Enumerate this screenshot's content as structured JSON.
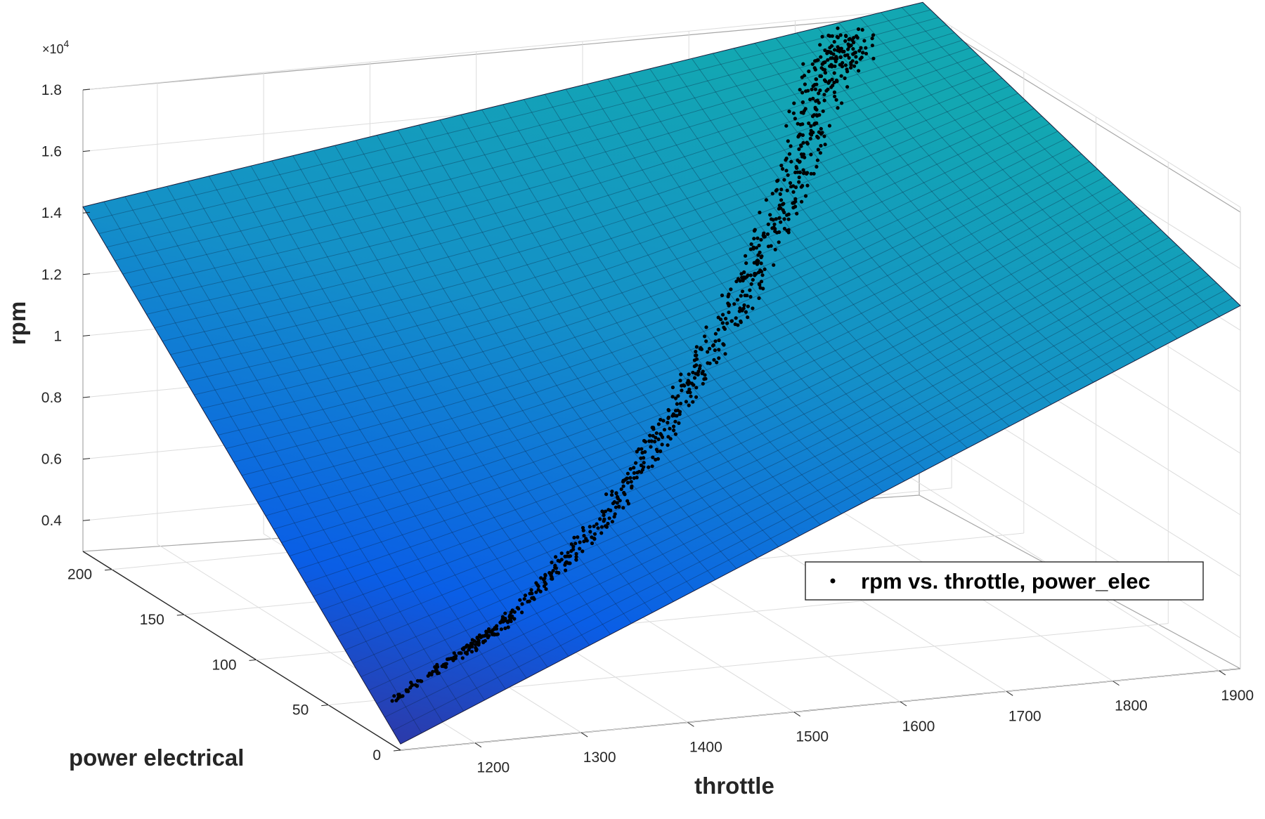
{
  "chart_data": {
    "type": "scatter",
    "view": "3d surface fit with scatter points",
    "x": {
      "label": "throttle",
      "ticks": [
        1200,
        1300,
        1400,
        1500,
        1600,
        1700,
        1800,
        1900
      ],
      "tick_labels": [
        "1200",
        "1300",
        "1400",
        "1500",
        "1600",
        "1700",
        "1800",
        "1900"
      ],
      "range": [
        1130,
        1920
      ]
    },
    "y": {
      "label": "power electrical",
      "ticks": [
        0,
        50,
        100,
        150,
        200
      ],
      "tick_labels": [
        "0",
        "50",
        "100",
        "150",
        "200"
      ],
      "range": [
        0,
        220
      ]
    },
    "z": {
      "label": "rpm",
      "ticks": [
        0.4,
        0.6,
        0.8,
        1.0,
        1.2,
        1.4,
        1.6,
        1.8
      ],
      "tick_labels": [
        "0.4",
        "0.6",
        "0.8",
        "1",
        "1.2",
        "1.4",
        "1.6",
        "1.8"
      ],
      "multiplier_base": "×10",
      "multiplier_exp": "4",
      "range": [
        0.3,
        1.8
      ]
    },
    "grid": true,
    "legend": {
      "position": "inside-right",
      "entries": [
        "rpm vs. throttle, power_elec"
      ]
    },
    "surface": {
      "corners": [
        {
          "throttle": 1130,
          "power": 0,
          "rpm": 0.32
        },
        {
          "throttle": 1130,
          "power": 220,
          "rpm": 1.42
        },
        {
          "throttle": 1920,
          "power": 0,
          "rpm": 1.48
        },
        {
          "throttle": 1920,
          "power": 220,
          "rpm": 1.82
        }
      ],
      "colormap": [
        "#3b2a8f",
        "#0a5ee6",
        "#1490c8",
        "#13a7b2"
      ]
    },
    "series": [
      {
        "name": "rpm vs. throttle, power_elec",
        "color": "#000000",
        "path": [
          {
            "throttle": 1130,
            "power": 5,
            "rpm": 0.45
          },
          {
            "throttle": 1250,
            "power": 20,
            "rpm": 0.6
          },
          {
            "throttle": 1380,
            "power": 45,
            "rpm": 0.82
          },
          {
            "throttle": 1500,
            "power": 80,
            "rpm": 1.05
          },
          {
            "throttle": 1620,
            "power": 120,
            "rpm": 1.3
          },
          {
            "throttle": 1720,
            "power": 160,
            "rpm": 1.5
          },
          {
            "throttle": 1800,
            "power": 200,
            "rpm": 1.68
          },
          {
            "throttle": 1850,
            "power": 215,
            "rpm": 1.75
          }
        ]
      }
    ]
  }
}
